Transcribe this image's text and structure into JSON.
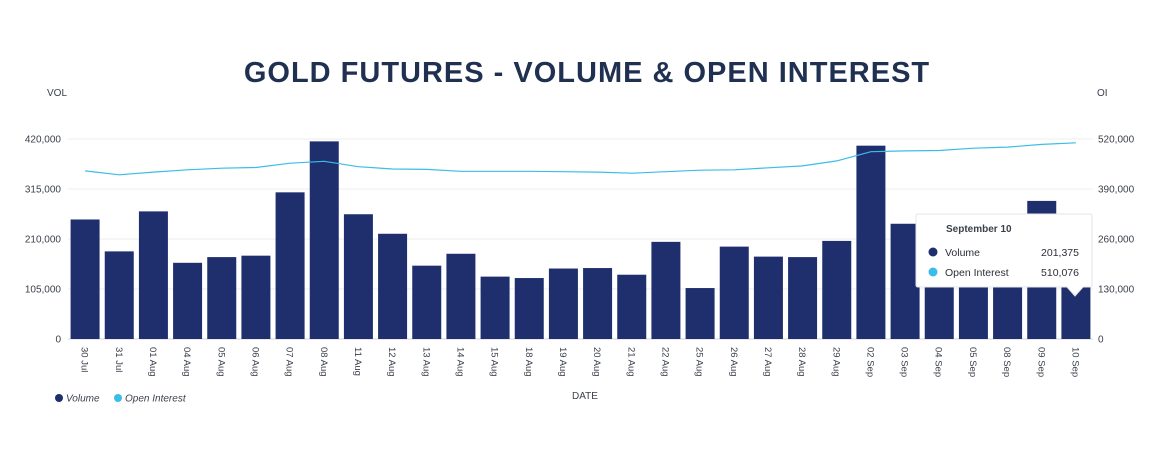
{
  "chart_data": {
    "type": "bar",
    "title": "GOLD FUTURES - VOLUME & OPEN INTEREST",
    "xlabel": "DATE",
    "ylabel_left": "VOL",
    "ylabel_right": "OI",
    "categories": [
      "30 Jul",
      "31 Jul",
      "01 Aug",
      "04 Aug",
      "05 Aug",
      "06 Aug",
      "07 Aug",
      "08 Aug",
      "11 Aug",
      "12 Aug",
      "13 Aug",
      "14 Aug",
      "15 Aug",
      "18 Aug",
      "19 Aug",
      "20 Aug",
      "21 Aug",
      "22 Aug",
      "25 Aug",
      "26 Aug",
      "27 Aug",
      "28 Aug",
      "29 Aug",
      "02 Sep",
      "03 Sep",
      "04 Sep",
      "05 Sep",
      "08 Sep",
      "09 Sep",
      "10 Sep"
    ],
    "ylim_left": [
      0,
      420000
    ],
    "yticks_left": [
      "0",
      "105,000",
      "210,000",
      "315,000",
      "420,000"
    ],
    "ylim_right": [
      0,
      520000
    ],
    "yticks_right": [
      "0",
      "130,000",
      "260,000",
      "390,000",
      "520,000"
    ],
    "series": [
      {
        "name": "Volume",
        "kind": "bar",
        "axis": "left",
        "color": "#1f2f6e",
        "values": [
          251000,
          184000,
          268000,
          160000,
          172000,
          175000,
          308000,
          415000,
          262000,
          221000,
          154000,
          179000,
          131000,
          128000,
          148000,
          149000,
          135000,
          204000,
          107000,
          194000,
          173000,
          172000,
          206000,
          406000,
          242000,
          232000,
          215000,
          207000,
          290000,
          201375
        ]
      },
      {
        "name": "Open Interest",
        "kind": "line",
        "axis": "right",
        "color": "#3bbde8",
        "values": [
          437000,
          427000,
          434000,
          440000,
          444000,
          446000,
          457000,
          462000,
          448000,
          442000,
          441000,
          436000,
          436000,
          436000,
          435000,
          434000,
          431000,
          435000,
          439000,
          440000,
          445000,
          450000,
          463000,
          487000,
          489000,
          490000,
          496000,
          499000,
          506000,
          510076
        ]
      }
    ],
    "grid": true,
    "legend_position": "bottom-left"
  },
  "legend": {
    "volume_label": "Volume",
    "oi_label": "Open Interest"
  },
  "tooltip": {
    "title": "September 10",
    "rows": [
      {
        "label": "Volume",
        "value": "201,375",
        "color": "#1f2f6e"
      },
      {
        "label": "Open Interest",
        "value": "510,076",
        "color": "#3bbde8"
      }
    ]
  }
}
